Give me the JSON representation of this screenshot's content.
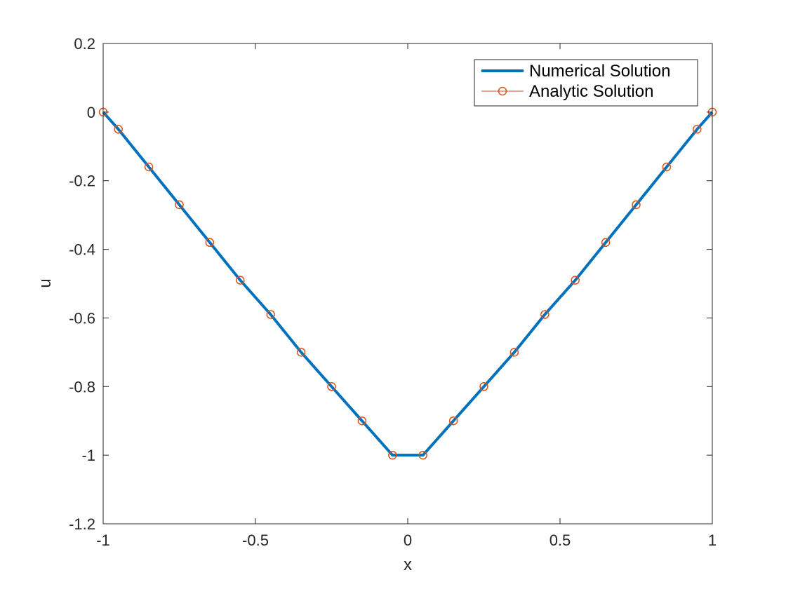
{
  "colors": {
    "numerical": "#0072BD",
    "analytic": "#D95319",
    "axis": "#262626",
    "background": "#ffffff"
  },
  "chart_data": {
    "type": "line",
    "title": "",
    "xlabel": "x",
    "ylabel": "u",
    "xlim": [
      -1,
      1
    ],
    "ylim": [
      -1.2,
      0.2
    ],
    "x_ticks": [
      -1,
      -0.5,
      0,
      0.5,
      1
    ],
    "x_tick_labels": [
      "-1",
      "-0.5",
      "0",
      "0.5",
      "1"
    ],
    "y_ticks": [
      -1.2,
      -1,
      -0.8,
      -0.6,
      -0.4,
      -0.2,
      0,
      0.2
    ],
    "y_tick_labels": [
      "-1.2",
      "-1",
      "-0.8",
      "-0.6",
      "-0.4",
      "-0.2",
      "0",
      "0.2"
    ],
    "grid": false,
    "legend_position": "top-right",
    "series": [
      {
        "name": "Numerical Solution",
        "style": "solid line",
        "color": "#0072BD",
        "x": [
          -1,
          -0.95,
          -0.85,
          -0.75,
          -0.65,
          -0.55,
          -0.45,
          -0.35,
          -0.25,
          -0.15,
          -0.05,
          0.05,
          0.15,
          0.25,
          0.35,
          0.45,
          0.55,
          0.65,
          0.75,
          0.85,
          0.95,
          1
        ],
        "y": [
          0,
          -0.05,
          -0.16,
          -0.27,
          -0.38,
          -0.49,
          -0.59,
          -0.7,
          -0.8,
          -0.9,
          -1.0,
          -1.0,
          -0.9,
          -0.8,
          -0.7,
          -0.59,
          -0.49,
          -0.38,
          -0.27,
          -0.16,
          -0.05,
          0
        ]
      },
      {
        "name": "Analytic Solution",
        "style": "circle markers with thin line",
        "color": "#D95319",
        "x": [
          -1,
          -0.95,
          -0.85,
          -0.75,
          -0.65,
          -0.55,
          -0.45,
          -0.35,
          -0.25,
          -0.15,
          -0.05,
          0.05,
          0.15,
          0.25,
          0.35,
          0.45,
          0.55,
          0.65,
          0.75,
          0.85,
          0.95,
          1
        ],
        "y": [
          0,
          -0.05,
          -0.16,
          -0.27,
          -0.38,
          -0.49,
          -0.59,
          -0.7,
          -0.8,
          -0.9,
          -1.0,
          -1.0,
          -0.9,
          -0.8,
          -0.7,
          -0.59,
          -0.49,
          -0.38,
          -0.27,
          -0.16,
          -0.05,
          0
        ]
      }
    ]
  }
}
